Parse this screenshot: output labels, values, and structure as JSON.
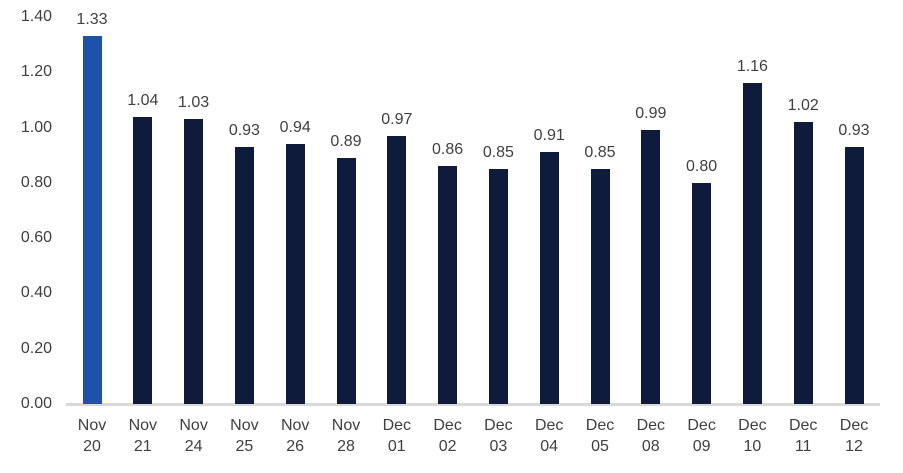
{
  "chart_data": {
    "type": "bar",
    "title": "",
    "xlabel": "",
    "ylabel": "",
    "categories": [
      "Nov 20",
      "Nov 21",
      "Nov 24",
      "Nov 25",
      "Nov 26",
      "Nov 28",
      "Dec 01",
      "Dec 02",
      "Dec 03",
      "Dec 04",
      "Dec 05",
      "Dec 08",
      "Dec 09",
      "Dec 10",
      "Dec 11",
      "Dec 12"
    ],
    "values": [
      1.33,
      1.04,
      1.03,
      0.93,
      0.94,
      0.89,
      0.97,
      0.86,
      0.85,
      0.91,
      0.85,
      0.99,
      0.8,
      1.16,
      1.02,
      0.93
    ],
    "data_labels": [
      "1.33",
      "1.04",
      "1.03",
      "0.93",
      "0.94",
      "0.89",
      "0.97",
      "0.86",
      "0.85",
      "0.91",
      "0.85",
      "0.99",
      "0.80",
      "1.16",
      "1.02",
      "0.93"
    ],
    "ylim": [
      0.0,
      1.4
    ],
    "ytick_labels": [
      "0.00",
      "0.20",
      "0.40",
      "0.60",
      "0.80",
      "1.00",
      "1.20",
      "1.40"
    ],
    "grid": false,
    "legend": false,
    "show_data_labels": true,
    "highlight_index": 0,
    "colors": {
      "bar": "#0e1b3a",
      "highlight_bar": "#1d52a8",
      "axis_line": "#d9d9d9",
      "text": "#404040"
    }
  }
}
